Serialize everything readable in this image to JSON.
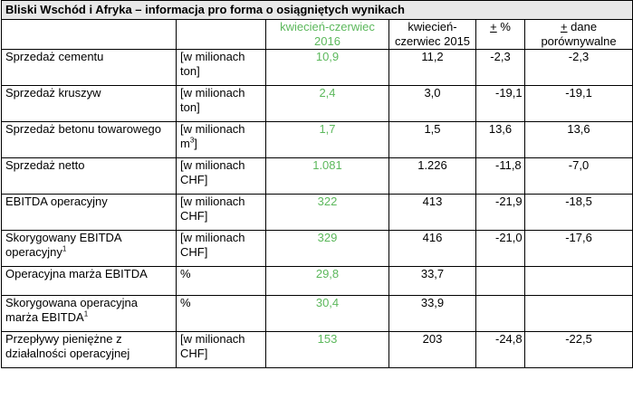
{
  "title": "Bliski Wschód i Afryka – informacja pro forma o osiągniętych wynikach",
  "headers": {
    "period_2016": "kwiecień-czerwiec 2016",
    "period_2015": "kwiecień-czerwiec 2015",
    "pct_sign": "+",
    "pct_label": " %",
    "comparable_sign": "+",
    "comparable_label": " dane porównywalne"
  },
  "colors": {
    "highlight": "#5cb85c"
  },
  "rows": [
    {
      "label": "Sprzedaż cementu",
      "unit": "[w milionach ton]",
      "v2016": "10,9",
      "v2015": "11,2",
      "pct": "-2,3",
      "comparable": "-2,3"
    },
    {
      "label": "Sprzedaż kruszyw",
      "unit": "[w milionach ton]",
      "v2016": "2,4",
      "v2015": "3,0",
      "pct": "-19,1",
      "comparable": "-19,1"
    },
    {
      "label": "Sprzedaż betonu towarowego",
      "unit": "[w milionach m",
      "unit_sup": "3",
      "unit_end": "]",
      "v2016": "1,7",
      "v2015": "1,5",
      "pct": "13,6",
      "comparable": "13,6"
    },
    {
      "label": "Sprzedaż netto",
      "unit": "[w milionach CHF]",
      "v2016": "1.081",
      "v2015": "1.226",
      "pct": "-11,8",
      "comparable": "-7,0"
    },
    {
      "label": "EBITDA operacyjny",
      "unit": "[w milionach CHF]",
      "v2016": "322",
      "v2015": "413",
      "pct": "-21,9",
      "comparable": "-18,5"
    },
    {
      "label": "Skorygowany EBITDA operacyjny",
      "label_sup": "1",
      "unit": "[w milionach CHF]",
      "v2016": "329",
      "v2015": "416",
      "pct": "-21,0",
      "comparable": "-17,6"
    },
    {
      "label": "Operacyjna marża EBITDA",
      "unit": "%",
      "v2016": "29,8",
      "v2015": "33,7",
      "pct": "",
      "comparable": ""
    },
    {
      "label": "Skorygowana operacyjna marża EBITDA",
      "label_sup": "1",
      "unit": "%",
      "v2016": "30,4",
      "v2015": "33,9",
      "pct": "",
      "comparable": ""
    },
    {
      "label": "Przepływy pieniężne z działalności operacyjnej",
      "unit": "[w milionach CHF]",
      "v2016": "153",
      "v2015": "203",
      "pct": "-24,8",
      "comparable": "-22,5"
    }
  ]
}
